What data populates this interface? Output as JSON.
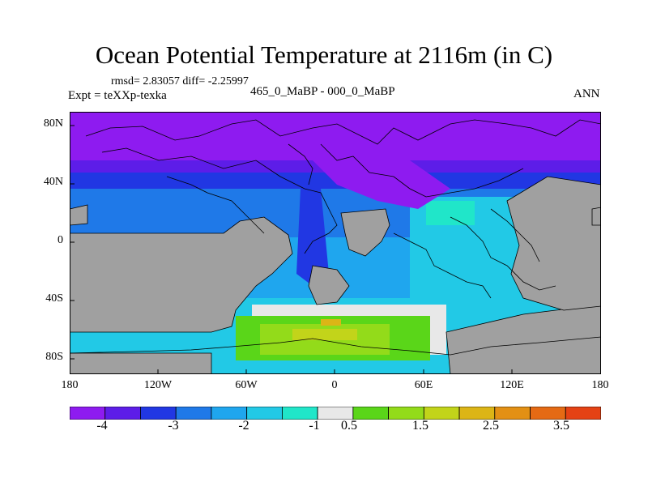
{
  "title": "Ocean Potential Temperature at 2116m (in C)",
  "stats": "rmsd= 2.83057 diff= -2.25997",
  "experiment": "Expt = teXXp-texka",
  "difference": "465_0_MaBP - 000_0_MaBP",
  "season": "ANN",
  "axes": {
    "lat_labels": [
      "80N",
      "40N",
      "0",
      "40S",
      "80S"
    ],
    "lon_labels": [
      "180",
      "120W",
      "60W",
      "0",
      "60E",
      "120E",
      "180"
    ]
  },
  "colorbar": {
    "labels": [
      "-4",
      "-3",
      "-2",
      "-1",
      "0.5",
      "1.5",
      "2.5",
      "3.5"
    ],
    "colors": [
      "#8e1bf0",
      "#5d1de8",
      "#2137e3",
      "#1f79e8",
      "#1fa6ee",
      "#22c9e6",
      "#20e6c9",
      "#e8e8e8",
      "#5ad619",
      "#93db1a",
      "#c2d41a",
      "#dcb516",
      "#e39014",
      "#e56a14",
      "#e54214"
    ]
  },
  "colors": {
    "land": "#a0a0a0",
    "coast": "#000000"
  }
}
